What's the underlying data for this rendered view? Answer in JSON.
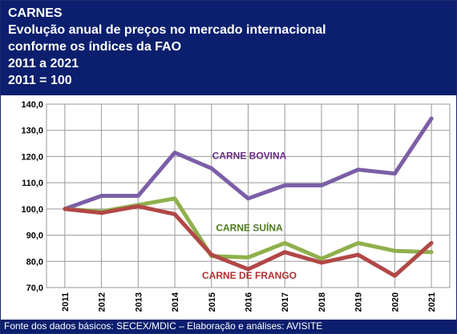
{
  "header": {
    "title": "CARNES",
    "subtitle_1": "Evolução anual de preços no mercado internacional",
    "subtitle_2": "conforme os índices da FAO",
    "period": "2011 a 2021",
    "base": "2011 = 100"
  },
  "footer": {
    "source": "Fonte dos dados básicos: SECEX/MDIC – Elaboração e análises: AVISITE"
  },
  "chart_data": {
    "type": "line",
    "x": [
      "2011",
      "2012",
      "2013",
      "2014",
      "2015",
      "2016",
      "2017",
      "2018",
      "2019",
      "2020",
      "2021"
    ],
    "ylim": [
      70,
      140
    ],
    "yticks": [
      "70,0",
      "80,0",
      "90,0",
      "100,0",
      "110,0",
      "120,0",
      "130,0",
      "140,0"
    ],
    "grid": true,
    "series": [
      {
        "name": "CARNE BOVINA",
        "color": "#7b5ea7",
        "values": [
          100,
          105,
          105,
          121.5,
          115.5,
          104,
          109,
          109,
          115,
          113.5,
          134.5
        ]
      },
      {
        "name": "CARNE SUÍNA",
        "color": "#8fb04c",
        "values": [
          100,
          99,
          101.5,
          104,
          82,
          81.5,
          87,
          81,
          87,
          84,
          83.5
        ]
      },
      {
        "name": "CARNE DE FRANGO",
        "color": "#b14747",
        "values": [
          100,
          98.5,
          101,
          98,
          82.5,
          77,
          83.5,
          79.5,
          82.5,
          74.5,
          87
        ]
      }
    ]
  }
}
